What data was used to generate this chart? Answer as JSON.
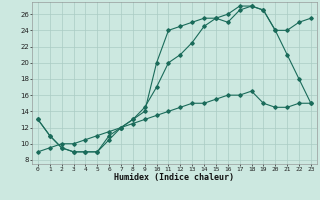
{
  "title": "",
  "xlabel": "Humidex (Indice chaleur)",
  "background_color": "#cce8e0",
  "grid_color": "#aaccc4",
  "line_color": "#1a6b5a",
  "xlim": [
    -0.5,
    23.5
  ],
  "ylim": [
    7.5,
    27.5
  ],
  "xticks": [
    0,
    1,
    2,
    3,
    4,
    5,
    6,
    7,
    8,
    9,
    10,
    11,
    12,
    13,
    14,
    15,
    16,
    17,
    18,
    19,
    20,
    21,
    22,
    23
  ],
  "yticks": [
    8,
    10,
    12,
    14,
    16,
    18,
    20,
    22,
    24,
    26
  ],
  "series1_x": [
    0,
    1,
    2,
    3,
    4,
    5,
    6,
    7,
    8,
    9,
    10,
    11,
    12,
    13,
    14,
    15,
    16,
    17,
    18,
    19,
    20,
    21,
    22,
    23
  ],
  "series1_y": [
    13,
    11,
    9.5,
    9,
    9,
    9,
    11,
    12,
    13,
    14,
    20,
    24,
    24.5,
    25,
    25.5,
    25.5,
    25,
    26.5,
    27,
    26.5,
    24,
    21,
    18,
    15
  ],
  "series2_x": [
    0,
    1,
    2,
    3,
    4,
    5,
    6,
    7,
    8,
    9,
    10,
    11,
    12,
    13,
    14,
    15,
    16,
    17,
    18,
    19,
    20,
    21,
    22,
    23
  ],
  "series2_y": [
    13,
    11,
    9.5,
    9,
    9,
    9,
    10.5,
    12,
    13,
    14.5,
    17,
    20,
    21,
    22.5,
    24.5,
    25.5,
    26,
    27,
    27,
    26.5,
    24,
    24,
    25,
    25.5
  ],
  "series3_x": [
    0,
    1,
    2,
    3,
    4,
    5,
    6,
    7,
    8,
    9,
    10,
    11,
    12,
    13,
    14,
    15,
    16,
    17,
    18,
    19,
    20,
    21,
    22,
    23
  ],
  "series3_y": [
    9,
    9.5,
    10,
    10,
    10.5,
    11,
    11.5,
    12,
    12.5,
    13,
    13.5,
    14,
    14.5,
    15,
    15,
    15.5,
    16,
    16,
    16.5,
    15,
    14.5,
    14.5,
    15,
    15
  ]
}
